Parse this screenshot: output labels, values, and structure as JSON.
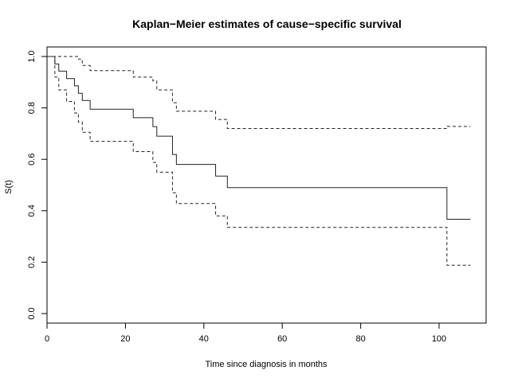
{
  "chart_data": {
    "type": "line",
    "title": "Kaplan−Meier estimates of cause−specific survival",
    "xlabel": "Time since diagnosis in months",
    "ylabel": "S(t)",
    "xlim": [
      0,
      110
    ],
    "ylim": [
      0,
      1
    ],
    "x_ticks": [
      0,
      20,
      40,
      60,
      80,
      100
    ],
    "x_tick_labels": [
      "0",
      "20",
      "40",
      "60",
      "80",
      "100"
    ],
    "y_ticks": [
      0.0,
      0.2,
      0.4,
      0.6,
      0.8,
      1.0
    ],
    "y_tick_labels": [
      "0.0",
      "0.2",
      "0.4",
      "0.6",
      "0.8",
      "1.0"
    ],
    "grid": false,
    "legend": "none",
    "series": [
      {
        "style": "solid",
        "x": [
          0,
          2,
          3,
          5,
          7,
          8,
          9,
          11,
          22,
          27,
          28,
          32,
          33,
          43,
          46,
          102,
          108
        ],
        "y": [
          1.0,
          0.971,
          0.943,
          0.914,
          0.886,
          0.857,
          0.829,
          0.795,
          0.762,
          0.727,
          0.69,
          0.619,
          0.58,
          0.535,
          0.49,
          0.367,
          0.367
        ]
      },
      {
        "style": "dashed",
        "x": [
          0,
          2,
          3,
          5,
          7,
          8,
          9,
          11,
          22,
          27,
          28,
          32,
          33,
          43,
          46,
          102,
          108
        ],
        "y": [
          1.0,
          1.0,
          1.0,
          1.0,
          1.0,
          0.99,
          0.965,
          0.945,
          0.92,
          0.905,
          0.87,
          0.82,
          0.787,
          0.755,
          0.72,
          0.728,
          0.728
        ]
      },
      {
        "style": "dashed",
        "x": [
          0,
          2,
          3,
          5,
          7,
          8,
          9,
          11,
          22,
          27,
          28,
          32,
          33,
          43,
          46,
          102,
          108
        ],
        "y": [
          1.0,
          0.92,
          0.87,
          0.825,
          0.78,
          0.745,
          0.705,
          0.67,
          0.63,
          0.588,
          0.55,
          0.47,
          0.428,
          0.38,
          0.335,
          0.188,
          0.188
        ]
      }
    ]
  }
}
